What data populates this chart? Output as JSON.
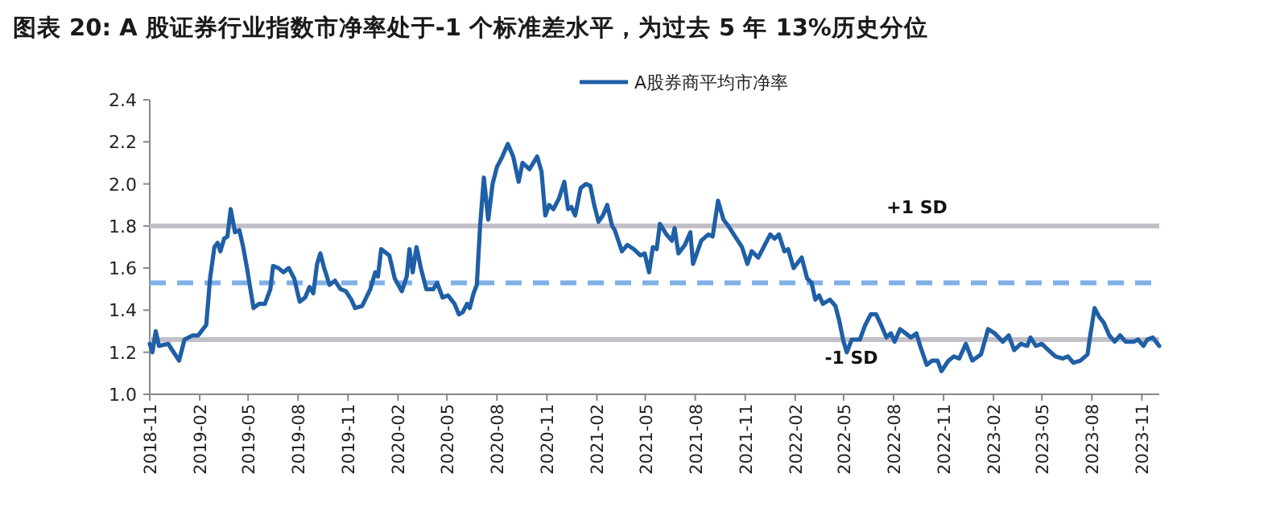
{
  "chart_data": {
    "type": "line",
    "title": "图表 20: A 股证券行业指数市净率处于-1 个标准差水平，为过去 5 年 13%历史分位",
    "legend": "top",
    "xlim": [
      "2018-11-01",
      "2023-12-03"
    ],
    "ylim": [
      1.0,
      2.4
    ],
    "yticks": [
      {
        "value": 1.0,
        "label": "1.0"
      },
      1.2,
      1.4,
      1.6,
      1.8,
      {
        "value": 2.0,
        "label": "2.0"
      },
      2.2,
      2.4
    ],
    "xticks": [
      {
        "value": "2018-11",
        "label": "2018-11"
      },
      {
        "value": "2019-02",
        "label": "2019-02"
      },
      {
        "value": "2019-05",
        "label": "2019-05"
      },
      {
        "value": "2019-08",
        "label": "2019-08"
      },
      {
        "value": "2019-11",
        "label": "2019-11"
      },
      {
        "value": "2020-02",
        "label": "2020-02"
      },
      {
        "value": "2020-05",
        "label": "2020-05"
      },
      {
        "value": "2020-08",
        "label": "2020-08"
      },
      {
        "value": "2020-11",
        "label": "2020-11"
      },
      {
        "value": "2021-02",
        "label": "2021-02"
      },
      {
        "value": "2021-05",
        "label": "2021-05"
      },
      {
        "value": "2021-08",
        "label": "2021-08"
      },
      {
        "value": "2021-11",
        "label": "2021-11"
      },
      {
        "value": "2022-02",
        "label": "2022-02"
      },
      {
        "value": "2022-05",
        "label": "2022-05"
      },
      {
        "value": "2022-08",
        "label": "2022-08"
      },
      {
        "value": "2022-11",
        "label": "2022-11"
      },
      {
        "value": "2023-02",
        "label": "2023-02"
      },
      {
        "value": "2023-05",
        "label": "2023-05"
      },
      {
        "value": "2023-08",
        "label": "2023-08"
      },
      {
        "value": "2023-11",
        "label": "2023-11"
      }
    ],
    "ref_lines": [
      {
        "axis": "y",
        "value": 1.8,
        "label": "+1 SD",
        "color": "#c3bfc7",
        "line_style": "solid"
      },
      {
        "axis": "y",
        "value": 1.53,
        "color": "#7fb0e6",
        "line_style": "dashed"
      },
      {
        "axis": "y",
        "value": 1.26,
        "label": "-1 SD",
        "color": "#c3bfc7",
        "line_style": "solid"
      }
    ],
    "series": [
      {
        "name": "A股券商平均市净率",
        "color": "#1f5fa6",
        "x": [
          "2018-11-01",
          "2018-11-06",
          "2018-11-12",
          "2018-11-18",
          "2018-12-05",
          "2018-12-15",
          "2018-12-25",
          "2019-01-04",
          "2019-01-19",
          "2019-01-29",
          "2019-02-13",
          "2019-02-20",
          "2019-02-28",
          "2019-03-06",
          "2019-03-11",
          "2019-03-18",
          "2019-03-24",
          "2019-03-30",
          "2019-04-07",
          "2019-04-15",
          "2019-04-22",
          "2019-04-29",
          "2019-05-11",
          "2019-05-21",
          "2019-06-01",
          "2019-06-11",
          "2019-06-16",
          "2019-06-26",
          "2019-07-05",
          "2019-07-15",
          "2019-07-25",
          "2019-08-04",
          "2019-08-14",
          "2019-08-22",
          "2019-08-29",
          "2019-09-05",
          "2019-09-11",
          "2019-09-18",
          "2019-09-28",
          "2019-10-08",
          "2019-10-18",
          "2019-10-28",
          "2019-11-07",
          "2019-11-14",
          "2019-11-27",
          "2019-12-12",
          "2019-12-21",
          "2019-12-26",
          "2020-01-01",
          "2020-01-16",
          "2020-01-26",
          "2020-02-08",
          "2020-02-17",
          "2020-02-22",
          "2020-02-28",
          "2020-03-06",
          "2020-03-14",
          "2020-03-24",
          "2020-04-06",
          "2020-04-13",
          "2020-04-23",
          "2020-05-03",
          "2020-05-15",
          "2020-05-23",
          "2020-05-30",
          "2020-06-07",
          "2020-06-12",
          "2020-06-19",
          "2020-06-25",
          "2020-07-01",
          "2020-07-08",
          "2020-07-16",
          "2020-07-24",
          "2020-08-01",
          "2020-08-11",
          "2020-08-21",
          "2020-08-31",
          "2020-09-10",
          "2020-09-17",
          "2020-09-30",
          "2020-10-14",
          "2020-10-22",
          "2020-10-29",
          "2020-11-05",
          "2020-11-13",
          "2020-11-23",
          "2020-12-03",
          "2020-12-10",
          "2020-12-16",
          "2020-12-23",
          "2021-01-02",
          "2021-01-12",
          "2021-01-20",
          "2021-01-27",
          "2021-02-04",
          "2021-02-12",
          "2021-02-20",
          "2021-03-01",
          "2021-03-06",
          "2021-03-19",
          "2021-03-29",
          "2021-04-10",
          "2021-04-22",
          "2021-04-30",
          "2021-05-08",
          "2021-05-15",
          "2021-05-22",
          "2021-05-28",
          "2021-06-09",
          "2021-06-19",
          "2021-06-24",
          "2021-07-01",
          "2021-07-13",
          "2021-07-23",
          "2021-07-28",
          "2021-08-12",
          "2021-08-25",
          "2021-09-02",
          "2021-09-12",
          "2021-09-22",
          "2021-10-01",
          "2021-10-16",
          "2021-10-26",
          "2021-11-05",
          "2021-11-13",
          "2021-11-25",
          "2021-12-05",
          "2021-12-17",
          "2021-12-25",
          "2022-01-02",
          "2022-01-12",
          "2022-01-19",
          "2022-01-29",
          "2022-02-13",
          "2022-02-23",
          "2022-03-03",
          "2022-03-10",
          "2022-03-17",
          "2022-03-24",
          "2022-04-06",
          "2022-04-16",
          "2022-04-23",
          "2022-05-01",
          "2022-05-07",
          "2022-05-16",
          "2022-05-31",
          "2022-06-10",
          "2022-06-20",
          "2022-06-30",
          "2022-07-09",
          "2022-07-19",
          "2022-07-27",
          "2022-08-03",
          "2022-08-13",
          "2022-08-23",
          "2022-09-02",
          "2022-09-12",
          "2022-09-19",
          "2022-10-01",
          "2022-10-11",
          "2022-10-21",
          "2022-10-28",
          "2022-11-10",
          "2022-11-20",
          "2022-11-30",
          "2022-12-12",
          "2022-12-24",
          "2023-01-09",
          "2023-01-22",
          "2023-02-03",
          "2023-02-18",
          "2023-03-01",
          "2023-03-11",
          "2023-03-23",
          "2023-04-04",
          "2023-04-10",
          "2023-04-20",
          "2023-05-01",
          "2023-05-13",
          "2023-05-26",
          "2023-06-08",
          "2023-06-18",
          "2023-06-28",
          "2023-07-11",
          "2023-07-24",
          "2023-07-29",
          "2023-08-06",
          "2023-08-14",
          "2023-08-23",
          "2023-09-02",
          "2023-09-12",
          "2023-09-22",
          "2023-10-02",
          "2023-10-17",
          "2023-10-25",
          "2023-11-04",
          "2023-11-11",
          "2023-11-21",
          "2023-12-03"
        ],
        "values": [
          1.24,
          1.2,
          1.3,
          1.23,
          1.24,
          1.2,
          1.16,
          1.26,
          1.28,
          1.28,
          1.33,
          1.55,
          1.7,
          1.72,
          1.68,
          1.74,
          1.75,
          1.88,
          1.77,
          1.78,
          1.7,
          1.6,
          1.41,
          1.43,
          1.43,
          1.5,
          1.61,
          1.6,
          1.58,
          1.6,
          1.55,
          1.44,
          1.46,
          1.51,
          1.48,
          1.62,
          1.67,
          1.6,
          1.52,
          1.54,
          1.5,
          1.49,
          1.45,
          1.41,
          1.42,
          1.5,
          1.58,
          1.56,
          1.69,
          1.66,
          1.55,
          1.49,
          1.56,
          1.69,
          1.58,
          1.7,
          1.6,
          1.5,
          1.5,
          1.53,
          1.46,
          1.47,
          1.43,
          1.38,
          1.39,
          1.43,
          1.41,
          1.48,
          1.52,
          1.8,
          2.03,
          1.83,
          2.0,
          2.08,
          2.13,
          2.19,
          2.13,
          2.01,
          2.1,
          2.07,
          2.13,
          2.06,
          1.85,
          1.9,
          1.88,
          1.93,
          2.01,
          1.88,
          1.89,
          1.85,
          1.98,
          2.0,
          1.99,
          1.9,
          1.82,
          1.85,
          1.9,
          1.8,
          1.78,
          1.68,
          1.71,
          1.69,
          1.66,
          1.67,
          1.58,
          1.7,
          1.69,
          1.81,
          1.76,
          1.73,
          1.79,
          1.67,
          1.71,
          1.77,
          1.62,
          1.73,
          1.76,
          1.75,
          1.92,
          1.83,
          1.8,
          1.74,
          1.7,
          1.62,
          1.68,
          1.65,
          1.7,
          1.76,
          1.74,
          1.76,
          1.68,
          1.69,
          1.6,
          1.65,
          1.55,
          1.53,
          1.45,
          1.47,
          1.43,
          1.45,
          1.42,
          1.35,
          1.25,
          1.2,
          1.26,
          1.26,
          1.33,
          1.38,
          1.38,
          1.33,
          1.27,
          1.29,
          1.25,
          1.31,
          1.29,
          1.27,
          1.29,
          1.23,
          1.14,
          1.16,
          1.16,
          1.11,
          1.16,
          1.18,
          1.17,
          1.24,
          1.16,
          1.19,
          1.31,
          1.29,
          1.25,
          1.28,
          1.21,
          1.24,
          1.23,
          1.27,
          1.23,
          1.24,
          1.21,
          1.18,
          1.17,
          1.18,
          1.15,
          1.16,
          1.19,
          1.28,
          1.41,
          1.37,
          1.34,
          1.28,
          1.25,
          1.28,
          1.25,
          1.25,
          1.26,
          1.23,
          1.26,
          1.27,
          1.23
        ]
      }
    ]
  }
}
